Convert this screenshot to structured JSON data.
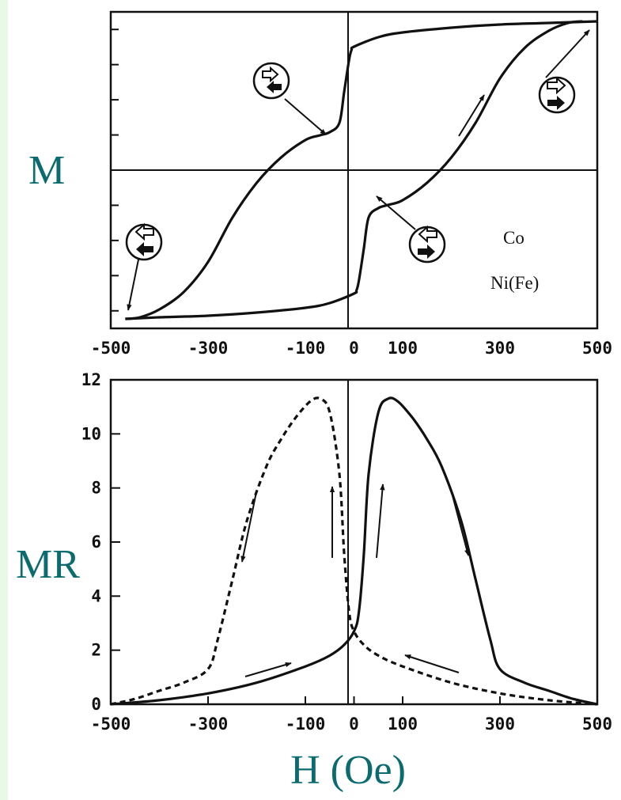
{
  "colors": {
    "label": "#0b6b6e",
    "strip": "#eaf8e6",
    "ink": "#111111"
  },
  "labels": {
    "m_axis": "M",
    "mr_axis": "MR",
    "h_axis": "H (Oe)"
  },
  "chart_data": [
    {
      "type": "line",
      "xlabel": "",
      "ylabel": "M",
      "xlim": [
        -500,
        500
      ],
      "ylim": [
        -1,
        1
      ],
      "x_ticks": [
        "-500",
        "-300",
        "-100",
        "0",
        "100",
        "300",
        "500"
      ],
      "grid": false,
      "annotations": [
        "Co",
        "Ni(Fe)"
      ],
      "series": [
        {
          "x": [
            -470,
            -440,
            -400,
            -350,
            -300,
            -250,
            -200,
            -150,
            -100,
            -70,
            -50,
            -30,
            -20,
            -10,
            -5,
            0,
            50,
            100,
            200,
            300,
            400,
            500
          ],
          "y": [
            -0.94,
            -0.93,
            -0.88,
            -0.77,
            -0.58,
            -0.3,
            -0.08,
            0.08,
            0.19,
            0.22,
            0.24,
            0.3,
            0.5,
            0.7,
            0.76,
            0.78,
            0.84,
            0.87,
            0.9,
            0.92,
            0.93,
            0.94
          ]
        },
        {
          "x": [
            -470,
            -400,
            -300,
            -200,
            -100,
            -50,
            0,
            5,
            10,
            20,
            30,
            50,
            70,
            100,
            150,
            200,
            250,
            300,
            350,
            400,
            440,
            470
          ],
          "y": [
            -0.94,
            -0.93,
            -0.92,
            -0.9,
            -0.87,
            -0.84,
            -0.78,
            -0.76,
            -0.7,
            -0.5,
            -0.3,
            -0.24,
            -0.22,
            -0.19,
            -0.08,
            0.08,
            0.3,
            0.58,
            0.77,
            0.88,
            0.93,
            0.94
          ]
        }
      ]
    },
    {
      "type": "line",
      "xlabel": "H (Oe)",
      "ylabel": "MR",
      "xlim": [
        -500,
        500
      ],
      "ylim": [
        0,
        12
      ],
      "x_ticks": [
        "-500",
        "-300",
        "-100",
        "0",
        "100",
        "300",
        "500"
      ],
      "y_ticks": [
        "0",
        "2",
        "4",
        "6",
        "8",
        "10",
        "12"
      ],
      "grid": false,
      "series": [
        {
          "style": "solid",
          "x": [
            -500,
            -400,
            -300,
            -200,
            -100,
            -50,
            -20,
            0,
            10,
            20,
            30,
            50,
            70,
            90,
            120,
            150,
            180,
            220,
            250,
            280,
            300,
            350,
            400,
            450,
            500
          ],
          "y": [
            0.0,
            0.15,
            0.4,
            0.8,
            1.4,
            1.8,
            2.2,
            2.7,
            3.4,
            5.5,
            8.5,
            10.8,
            11.3,
            11.2,
            10.6,
            9.8,
            8.8,
            6.8,
            4.6,
            2.4,
            1.3,
            0.8,
            0.5,
            0.2,
            0.0
          ]
        },
        {
          "style": "dashed",
          "x": [
            -500,
            -450,
            -400,
            -350,
            -300,
            -280,
            -250,
            -220,
            -180,
            -150,
            -120,
            -90,
            -70,
            -50,
            -30,
            -20,
            -10,
            0,
            20,
            50,
            100,
            200,
            300,
            400,
            500
          ],
          "y": [
            0.0,
            0.2,
            0.5,
            0.8,
            1.3,
            2.4,
            4.6,
            6.8,
            8.8,
            9.8,
            10.6,
            11.2,
            11.3,
            10.8,
            8.5,
            5.5,
            3.4,
            2.7,
            2.2,
            1.8,
            1.4,
            0.8,
            0.4,
            0.15,
            0.0
          ]
        }
      ]
    }
  ]
}
